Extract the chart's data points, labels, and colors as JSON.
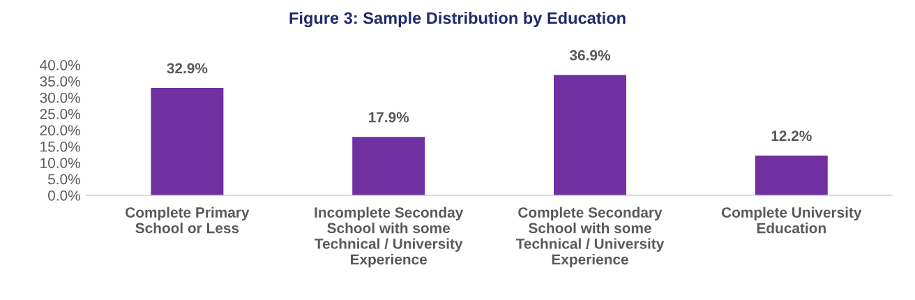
{
  "chart_data": {
    "type": "bar",
    "title": "Figure 3: Sample Distribution by Education",
    "categories": [
      "Complete Primary\nSchool or Less",
      "Incomplete Seconday\nSchool with some\nTechnical / University\nExperience",
      "Complete Secondary\nSchool with some\nTechnical / University\nExperience",
      "Complete University\nEducation"
    ],
    "values": [
      32.9,
      17.9,
      36.9,
      12.2
    ],
    "value_labels": [
      "32.9%",
      "17.9%",
      "36.9%",
      "12.2%"
    ],
    "color": "#7030a0",
    "ylim": [
      0,
      40
    ],
    "yticks": [
      {
        "value": 0,
        "label": "0.0%"
      },
      {
        "value": 5,
        "label": "5.0%"
      },
      {
        "value": 10,
        "label": "10.0%"
      },
      {
        "value": 15,
        "label": "15.0%"
      },
      {
        "value": 20,
        "label": "20.0%"
      },
      {
        "value": 25,
        "label": "25.0%"
      },
      {
        "value": 30,
        "label": "30.0%"
      },
      {
        "value": 35,
        "label": "35.0%"
      },
      {
        "value": 40,
        "label": "40.0%"
      }
    ],
    "grid": false,
    "legend": false
  }
}
